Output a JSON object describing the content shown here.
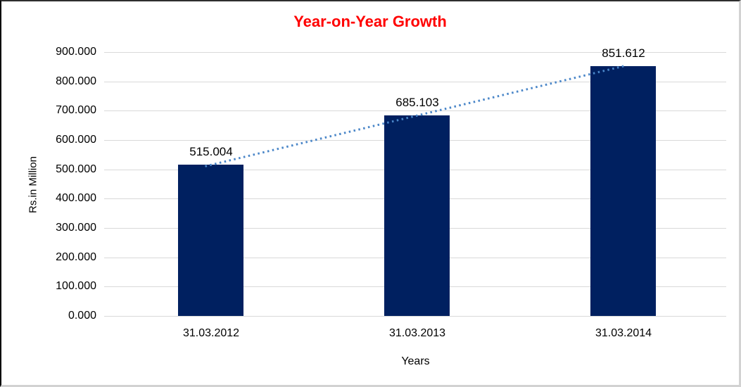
{
  "chart_data": {
    "type": "bar",
    "title": "Year-on-Year Growth",
    "title_color": "#ff0000",
    "categories": [
      "31.03.2012",
      "31.03.2013",
      "31.03.2014"
    ],
    "values": [
      515.004,
      685.103,
      851.612
    ],
    "value_labels": [
      "515.004",
      "685.103",
      "851.612"
    ],
    "xlabel": "Years",
    "ylabel": "Rs.in Million",
    "ylim": [
      0,
      900
    ],
    "ytick_step": 100,
    "ytick_decimals": 3,
    "grid": true,
    "gridline_color": "#d9d9d9",
    "bar_color": "#002060",
    "text_color": "#000000",
    "legend_position": "none",
    "trendline": {
      "type": "linear",
      "style": "dotted",
      "color": "#4a86c8"
    }
  }
}
